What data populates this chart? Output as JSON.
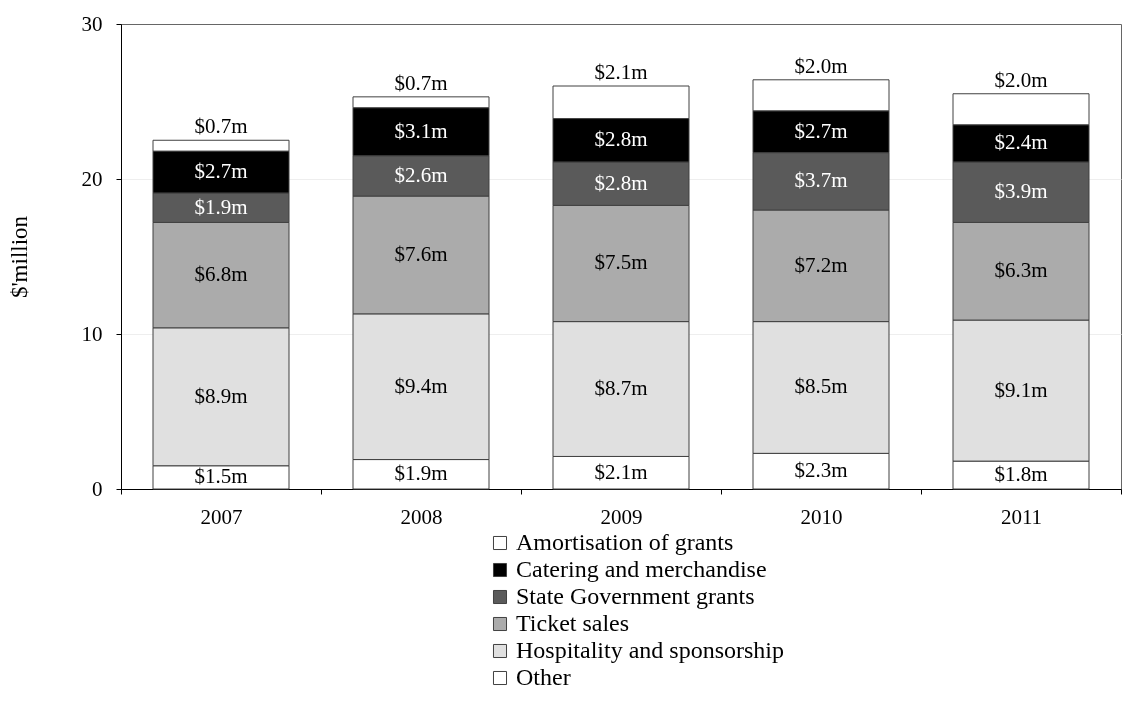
{
  "chart_data": {
    "type": "bar",
    "stacked": true,
    "ylabel": "$'million",
    "categories": [
      "2007",
      "2008",
      "2009",
      "2010",
      "2011"
    ],
    "ylim": [
      0,
      30
    ],
    "yticks": [
      0,
      10,
      20,
      30
    ],
    "grid": "y",
    "legend": "bottom",
    "series": [
      {
        "name": "Other",
        "color": "#ffffff",
        "values": [
          1.5,
          1.9,
          2.1,
          2.3,
          1.8
        ],
        "value_labels": [
          "$1.5m",
          "$1.9m",
          "$2.1m",
          "$2.3m",
          "$1.8m"
        ]
      },
      {
        "name": "Hospitality and sponsorship",
        "color": "#e0e0e0",
        "values": [
          8.9,
          9.4,
          8.7,
          8.5,
          9.1
        ],
        "value_labels": [
          "$8.9m",
          "$9.4m",
          "$8.7m",
          "$8.5m",
          "$9.1m"
        ]
      },
      {
        "name": "Ticket sales",
        "color": "#ababab",
        "values": [
          6.8,
          7.6,
          7.5,
          7.2,
          6.3
        ],
        "value_labels": [
          "$6.8m",
          "$7.6m",
          "$7.5m",
          "$7.2m",
          "$6.3m"
        ]
      },
      {
        "name": "State Government grants",
        "color": "#5a5a5a",
        "values": [
          1.9,
          2.6,
          2.8,
          3.7,
          3.9
        ],
        "value_labels": [
          "$1.9m",
          "$2.6m",
          "$2.8m",
          "$3.7m",
          "$3.9m"
        ]
      },
      {
        "name": "Catering and merchandise",
        "color": "#000000",
        "values": [
          2.7,
          3.1,
          2.8,
          2.7,
          2.4
        ],
        "value_labels": [
          "$2.7m",
          "$3.1m",
          "$2.8m",
          "$2.7m",
          "$2.4m"
        ]
      },
      {
        "name": "Amortisation of grants",
        "color": "#ffffff",
        "values": [
          0.7,
          0.7,
          2.1,
          2.0,
          2.0
        ],
        "value_labels": [
          "$0.7m",
          "$0.7m",
          "$2.1m",
          "$2.0m",
          "$2.0m"
        ]
      }
    ]
  }
}
